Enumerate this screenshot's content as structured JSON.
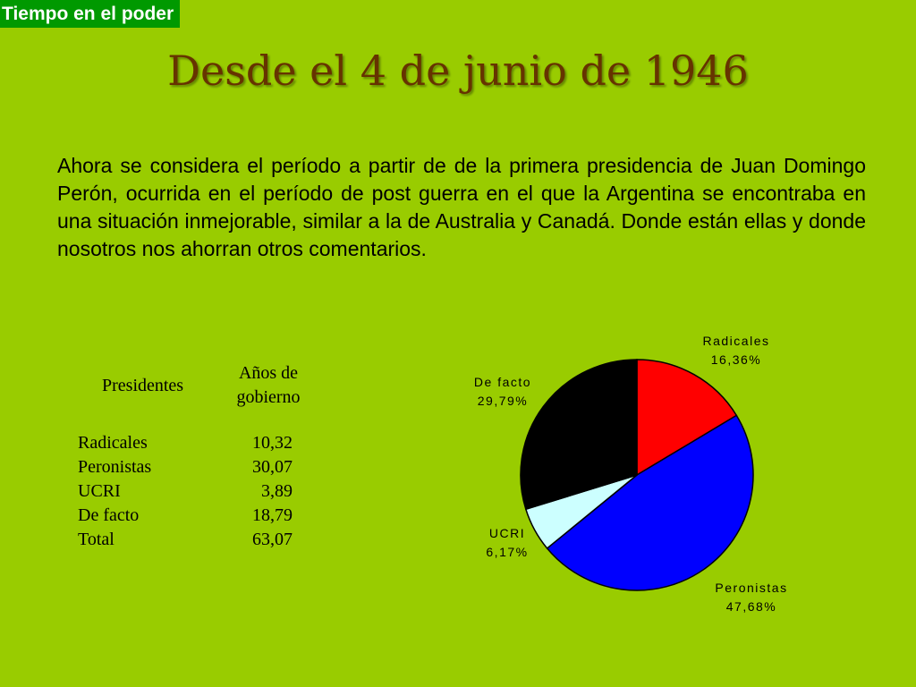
{
  "tag": "Tiempo en el poder",
  "title": "Desde el 4 de junio de 1946",
  "paragraph": "Ahora se considera el período a partir de de la primera presidencia de Juan Domingo Perón, ocurrida en el período de post guerra en el que la Argentina se encontraba en una situación inmejorable, similar a la de Australia y Canadá. Donde están ellas y donde nosotros nos ahorran otros comentarios.",
  "table": {
    "header_presidentes": "Presidentes",
    "header_anios_1": "Años de",
    "header_anios_2": "gobierno",
    "rows": [
      {
        "name": "Radicales",
        "value": "10,32"
      },
      {
        "name": "Peronistas",
        "value": "30,07"
      },
      {
        "name": "UCRI",
        "value": "3,89"
      },
      {
        "name": "De facto",
        "value": "18,79"
      },
      {
        "name": "Total",
        "value": "63,07"
      }
    ]
  },
  "chart_data": {
    "type": "pie",
    "slices": [
      {
        "name": "Radicales",
        "value": 16.36,
        "label": "16,36%",
        "color": "#ff0000"
      },
      {
        "name": "Peronistas",
        "value": 47.68,
        "label": "47,68%",
        "color": "#0000ff"
      },
      {
        "name": "UCRI",
        "value": 6.17,
        "label": "6,17%",
        "color": "#ccffff"
      },
      {
        "name": "De facto",
        "value": 29.79,
        "label": "29,79%",
        "color": "#000000"
      }
    ],
    "start": "12 o'clock, clockwise"
  },
  "colors": {
    "background": "#99cc00",
    "tag_background": "#009900",
    "title": "#663300"
  }
}
